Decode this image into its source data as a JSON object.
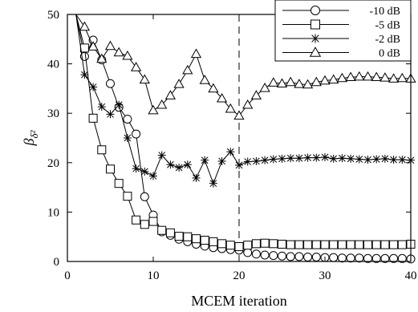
{
  "chart_data": {
    "type": "line",
    "xlabel": "MCEM iteration",
    "ylabel_base": "β",
    "ylabel_sub": "δ²",
    "xlim": [
      0,
      40
    ],
    "ylim": [
      0,
      50
    ],
    "xticks": [
      0,
      10,
      20,
      30,
      40
    ],
    "yticks": [
      0,
      10,
      20,
      30,
      40,
      50
    ],
    "grid": false,
    "legend_position": "top-right",
    "reference_line": {
      "x": 20,
      "style": "dashed"
    },
    "x": [
      1,
      2,
      3,
      4,
      5,
      6,
      7,
      8,
      9,
      10,
      11,
      12,
      13,
      14,
      15,
      16,
      17,
      18,
      19,
      20,
      21,
      22,
      23,
      24,
      25,
      26,
      27,
      28,
      29,
      30,
      31,
      32,
      33,
      34,
      35,
      36,
      37,
      38,
      39,
      40
    ],
    "series": [
      {
        "name": "-10 dB",
        "marker": "circle",
        "values": [
          50.0,
          41.5,
          44.8,
          40.8,
          36.0,
          31.2,
          28.8,
          25.8,
          13.1,
          9.4,
          6.0,
          5.3,
          4.5,
          4.0,
          3.5,
          3.1,
          2.8,
          2.6,
          2.4,
          2.3,
          1.8,
          1.5,
          1.3,
          1.2,
          1.1,
          1.0,
          1.0,
          0.9,
          0.9,
          0.8,
          0.8,
          0.7,
          0.7,
          0.7,
          0.6,
          0.6,
          0.6,
          0.6,
          0.6,
          0.5
        ]
      },
      {
        "name": "-5 dB",
        "marker": "square",
        "values": [
          50.0,
          43.2,
          29.0,
          22.6,
          18.7,
          15.8,
          13.2,
          8.4,
          7.5,
          8.1,
          6.3,
          5.8,
          5.1,
          5.0,
          4.6,
          4.3,
          4.0,
          3.6,
          3.3,
          3.0,
          3.3,
          3.6,
          3.7,
          3.6,
          3.5,
          3.4,
          3.4,
          3.4,
          3.4,
          3.4,
          3.4,
          3.4,
          3.4,
          3.4,
          3.4,
          3.4,
          3.4,
          3.4,
          3.4,
          3.5
        ]
      },
      {
        "name": "-2 dB",
        "marker": "asterisk",
        "values": [
          50.0,
          37.8,
          35.3,
          31.3,
          29.8,
          31.7,
          25.0,
          18.8,
          18.2,
          17.3,
          21.5,
          19.6,
          19.0,
          19.6,
          16.9,
          20.5,
          15.8,
          20.3,
          22.2,
          19.5,
          20.2,
          20.3,
          20.5,
          20.7,
          20.8,
          20.9,
          20.9,
          21.0,
          21.0,
          21.1,
          20.8,
          20.9,
          20.8,
          20.7,
          20.6,
          20.7,
          20.8,
          20.6,
          20.6,
          20.5
        ]
      },
      {
        "name": "0 dB",
        "marker": "triangle",
        "values": [
          50.0,
          47.5,
          43.5,
          41.0,
          43.6,
          42.3,
          41.6,
          39.3,
          36.8,
          30.6,
          31.7,
          33.6,
          35.9,
          38.7,
          42.0,
          36.7,
          35.0,
          33.0,
          30.9,
          29.5,
          31.7,
          33.6,
          35.1,
          36.2,
          36.0,
          36.3,
          35.9,
          35.8,
          36.3,
          36.6,
          36.8,
          37.1,
          37.3,
          37.4,
          37.4,
          37.3,
          37.2,
          37.0,
          37.1,
          37.0
        ]
      }
    ]
  }
}
